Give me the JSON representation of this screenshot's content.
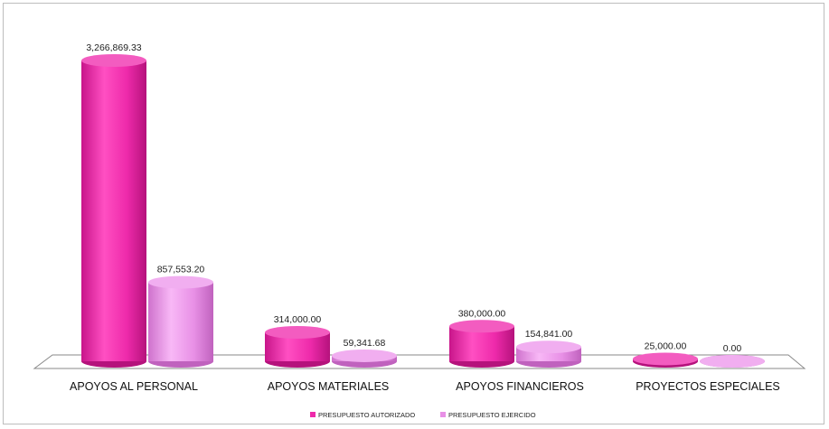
{
  "colors": {
    "autorizado": "#ee2aaa",
    "ejercido": "#e890e6",
    "floor": "#ffffff",
    "floor_stroke": "#8a8a8a"
  },
  "chart_data": {
    "type": "bar",
    "categories": [
      "APOYOS AL PERSONAL",
      "APOYOS MATERIALES",
      "APOYOS FINANCIEROS",
      "PROYECTOS ESPECIALES"
    ],
    "series": [
      {
        "name": "PRESUPUESTO AUTORIZADO",
        "values": [
          3266869.33,
          314000.0,
          380000.0,
          25000.0
        ],
        "labels": [
          "3,266,869.33",
          "314,000.00",
          "380,000.00",
          "25,000.00"
        ]
      },
      {
        "name": "PRESUPUESTO EJERCIDO",
        "values": [
          857553.2,
          59341.68,
          154841.0,
          0.0
        ],
        "labels": [
          "857,553.20",
          "59,341.68",
          "154,841.00",
          "0.00"
        ]
      }
    ],
    "ylim": [
      0,
      3266869.33
    ],
    "grid": false,
    "legend": "bottom-center",
    "bar_shape": "cylinder-3d"
  }
}
